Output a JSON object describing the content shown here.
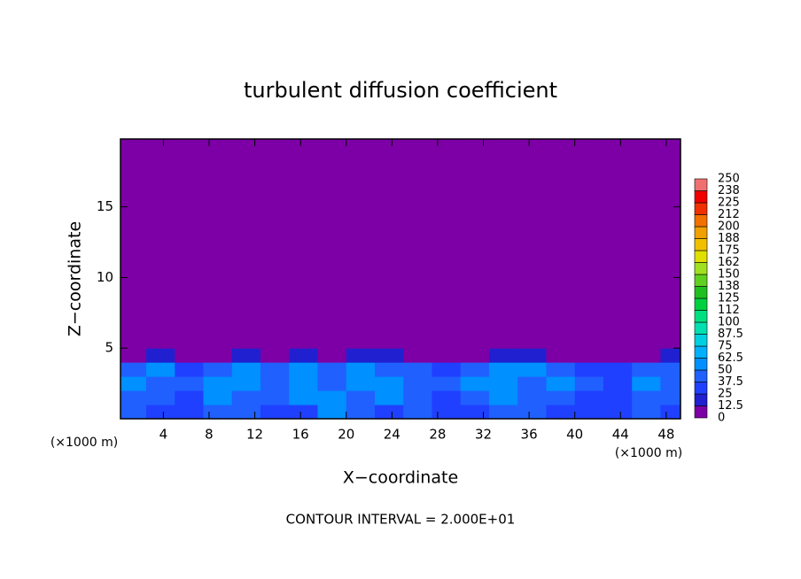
{
  "chart_data": {
    "type": "contour",
    "title": "turbulent diffusion coefficient",
    "x_label": "X−coordinate",
    "y_label": "Z−coordinate",
    "x_unit_left": "(×1000 m)",
    "x_unit_right": "(×1000 m)",
    "footnote": "CONTOUR INTERVAL = 2.000E+01",
    "xlim": [
      0.25,
      49.25
    ],
    "ylim": [
      0,
      19.8
    ],
    "xticks": [
      4,
      8,
      12,
      16,
      20,
      24,
      28,
      32,
      36,
      40,
      44,
      48
    ],
    "yticks": [
      5,
      10,
      15
    ],
    "field": {
      "x_edges": [
        0,
        2.5,
        5,
        7.5,
        10,
        12.5,
        15,
        17.5,
        20,
        22.5,
        25,
        27.5,
        30,
        32.5,
        35,
        37.5,
        40,
        42.5,
        45,
        47.5,
        50
      ],
      "z_edges": [
        0,
        1,
        2,
        3,
        4,
        5,
        19.8
      ],
      "values": [
        [
          40,
          35,
          30,
          45,
          40,
          30,
          35,
          60,
          40,
          35,
          40,
          30,
          35,
          40,
          45,
          35,
          30,
          25,
          40,
          35
        ],
        [
          45,
          40,
          35,
          55,
          45,
          40,
          60,
          50,
          45,
          55,
          40,
          35,
          45,
          50,
          40,
          45,
          35,
          30,
          45,
          40
        ],
        [
          50,
          45,
          40,
          60,
          55,
          45,
          55,
          45,
          60,
          50,
          45,
          40,
          50,
          55,
          45,
          50,
          40,
          35,
          50,
          45
        ],
        [
          40,
          50,
          35,
          45,
          60,
          40,
          50,
          40,
          55,
          45,
          40,
          35,
          45,
          50,
          55,
          40,
          35,
          30,
          40,
          45
        ],
        [
          10,
          15,
          5,
          10,
          20,
          10,
          15,
          10,
          20,
          15,
          10,
          5,
          10,
          15,
          20,
          10,
          5,
          5,
          10,
          15
        ],
        [
          0,
          0,
          0,
          0,
          0,
          0,
          0,
          0,
          0,
          0,
          0,
          0,
          0,
          0,
          0,
          0,
          0,
          0,
          0,
          0
        ]
      ]
    },
    "colorbar": {
      "levels": [
        0,
        12.5,
        25,
        37.5,
        50,
        62.5,
        75,
        87.5,
        100,
        112,
        125,
        138,
        150,
        162,
        175,
        188,
        200,
        212,
        225,
        238,
        250
      ],
      "colors": [
        "#7d00a6",
        "#2020d0",
        "#2040ff",
        "#2060ff",
        "#0090ff",
        "#00b0ff",
        "#00d0e0",
        "#00e0b0",
        "#00e080",
        "#00d040",
        "#20c020",
        "#60d020",
        "#a0e020",
        "#e0e000",
        "#f0c000",
        "#f0a000",
        "#f07000",
        "#f03000",
        "#f00000",
        "#f07070"
      ]
    }
  }
}
